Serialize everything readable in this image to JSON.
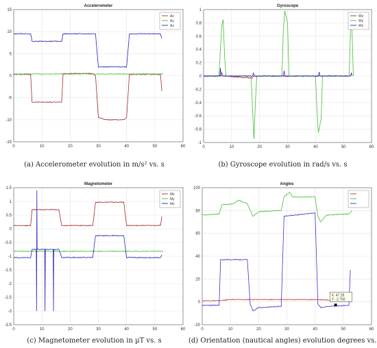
{
  "captions": {
    "a": "(a) Accelerometer evolution in m/s² vs. s",
    "b": "(b) Gyroscope evolution in rad/s vs. s",
    "c": "(c) Magnetometer evolution in µT vs. s",
    "d": "(d) Orientation (nautical angles) evolution degrees vs. s"
  },
  "chart_data": [
    {
      "type": "line",
      "title": "Accelerometer",
      "xlim": [
        0,
        60
      ],
      "ylim": [
        -15,
        15
      ],
      "xticks": [
        0,
        10,
        20,
        30,
        40,
        50,
        60
      ],
      "yticks": [
        -15,
        -10,
        -5,
        0,
        5,
        10,
        15
      ],
      "grid": true,
      "legend": "top-right",
      "series": [
        {
          "name": "Ax",
          "color": "#a0292a",
          "points": [
            [
              0,
              0.3
            ],
            [
              6,
              0.3
            ],
            [
              6.5,
              -6
            ],
            [
              8,
              -6
            ],
            [
              16,
              -6
            ],
            [
              17,
              -6
            ],
            [
              17.5,
              0.5
            ],
            [
              28,
              0.5
            ],
            [
              29,
              0
            ],
            [
              30,
              -9.5
            ],
            [
              33,
              -10
            ],
            [
              39,
              -10
            ],
            [
              40,
              -9.5
            ],
            [
              41,
              0.3
            ],
            [
              52,
              0.3
            ],
            [
              52.5,
              -3.5
            ]
          ]
        },
        {
          "name": "Ay",
          "color": "#44bb33",
          "points": [
            [
              0,
              0.4
            ],
            [
              52,
              0.4
            ],
            [
              53,
              0.4
            ]
          ]
        },
        {
          "name": "Az",
          "color": "#2222bb",
          "points": [
            [
              0,
              9.5
            ],
            [
              6,
              9.5
            ],
            [
              6.5,
              7.8
            ],
            [
              17,
              7.8
            ],
            [
              17.5,
              9.5
            ],
            [
              29,
              9.5
            ],
            [
              30,
              2
            ],
            [
              40,
              2
            ],
            [
              41,
              9.5
            ],
            [
              52,
              9.5
            ],
            [
              52.5,
              8.5
            ]
          ]
        }
      ]
    },
    {
      "type": "line",
      "title": "Gyroscope",
      "xlim": [
        0,
        60
      ],
      "ylim": [
        -1,
        1
      ],
      "xticks": [
        0,
        10,
        20,
        30,
        40,
        50,
        60
      ],
      "yticks": [
        -1,
        -0.8,
        -0.6,
        -0.4,
        -0.2,
        0,
        0.2,
        0.4,
        0.6,
        0.8,
        1
      ],
      "grid": true,
      "legend": "top-right",
      "series": [
        {
          "name": "Wx",
          "color": "#a0292a",
          "points": [
            [
              0,
              0
            ],
            [
              6,
              0
            ],
            [
              6.5,
              0.05
            ],
            [
              7,
              0
            ],
            [
              17.5,
              -0.03
            ],
            [
              18,
              0
            ],
            [
              52,
              0
            ]
          ]
        },
        {
          "name": "Wy",
          "color": "#44bb33",
          "points": [
            [
              0,
              0
            ],
            [
              5.5,
              0
            ],
            [
              6,
              0.4
            ],
            [
              6.5,
              0.75
            ],
            [
              7,
              0.85
            ],
            [
              7.5,
              0.3
            ],
            [
              8,
              0
            ],
            [
              17,
              0
            ],
            [
              17.5,
              -0.5
            ],
            [
              18,
              -0.95
            ],
            [
              18.5,
              -0.4
            ],
            [
              19,
              0
            ],
            [
              28,
              0
            ],
            [
              28.5,
              0.7
            ],
            [
              29,
              0.98
            ],
            [
              30,
              0.8
            ],
            [
              30.5,
              0
            ],
            [
              40,
              0
            ],
            [
              40.5,
              -0.5
            ],
            [
              41,
              -0.85
            ],
            [
              42,
              -0.65
            ],
            [
              42.5,
              0
            ],
            [
              52,
              0
            ],
            [
              52.5,
              0.7
            ],
            [
              53,
              0.75
            ],
            [
              53.5,
              0
            ]
          ]
        },
        {
          "name": "Wz",
          "color": "#2222bb",
          "points": [
            [
              0,
              0
            ],
            [
              5.8,
              0
            ],
            [
              6,
              0.12
            ],
            [
              6.3,
              0
            ],
            [
              17.5,
              0
            ],
            [
              17.8,
              0.05
            ],
            [
              18,
              0
            ],
            [
              28.5,
              0
            ],
            [
              28.8,
              0.08
            ],
            [
              29,
              0
            ],
            [
              41,
              0
            ],
            [
              41.3,
              0.06
            ],
            [
              41.6,
              0
            ],
            [
              52.5,
              0
            ],
            [
              52.8,
              0.05
            ],
            [
              53,
              0
            ]
          ]
        }
      ]
    },
    {
      "type": "line",
      "title": "Magnetometer",
      "xlim": [
        0,
        60
      ],
      "ylim": [
        -3.5,
        1.5
      ],
      "xticks": [
        0,
        10,
        20,
        30,
        40,
        50,
        60
      ],
      "yticks": [
        -3.5,
        -3,
        -2.5,
        -2,
        -1.5,
        -1,
        -0.5,
        0,
        0.5,
        1,
        1.5
      ],
      "grid": true,
      "legend": "top-right",
      "series": [
        {
          "name": "Mx",
          "color": "#a0292a",
          "points": [
            [
              0,
              0.12
            ],
            [
              6,
              0.12
            ],
            [
              6.5,
              0.7
            ],
            [
              16,
              0.7
            ],
            [
              17,
              0.12
            ],
            [
              28,
              0.12
            ],
            [
              29,
              0.97
            ],
            [
              39,
              0.97
            ],
            [
              40,
              0.12
            ],
            [
              52,
              0.12
            ],
            [
              52.5,
              0.45
            ]
          ]
        },
        {
          "name": "My",
          "color": "#44bb33",
          "points": [
            [
              0,
              -0.82
            ],
            [
              52,
              -0.82
            ],
            [
              53,
              -0.82
            ]
          ]
        },
        {
          "name": "Mz",
          "color": "#2222bb",
          "points": [
            [
              0,
              -1.05
            ],
            [
              6,
              -1.05
            ],
            [
              6.5,
              -0.75
            ],
            [
              8,
              -0.75
            ],
            [
              8.1,
              -3
            ],
            [
              8.2,
              1.4
            ],
            [
              8.3,
              -0.75
            ],
            [
              11,
              -0.75
            ],
            [
              11.1,
              -3
            ],
            [
              11.2,
              -0.75
            ],
            [
              14,
              -0.75
            ],
            [
              14.1,
              -3
            ],
            [
              14.2,
              -0.75
            ],
            [
              16,
              -0.75
            ],
            [
              17,
              -1.05
            ],
            [
              28,
              -1.05
            ],
            [
              29,
              -0.25
            ],
            [
              39,
              -0.25
            ],
            [
              40,
              -1.05
            ],
            [
              52,
              -1.05
            ],
            [
              52.5,
              -0.95
            ]
          ]
        }
      ]
    },
    {
      "type": "line",
      "title": "Angles",
      "xlim": [
        0,
        60
      ],
      "ylim": [
        -20,
        100
      ],
      "xticks": [
        0,
        10,
        20,
        30,
        40,
        50,
        60
      ],
      "yticks": [
        -20,
        0,
        20,
        40,
        60,
        80,
        100
      ],
      "grid": true,
      "legend": "top-right",
      "series": [
        {
          "color": "#c03030",
          "points": [
            [
              0,
              1
            ],
            [
              6,
              1
            ],
            [
              10,
              2
            ],
            [
              20,
              2
            ],
            [
              30,
              2
            ],
            [
              40,
              2
            ],
            [
              52,
              1
            ]
          ]
        },
        {
          "color": "#44bb33",
          "points": [
            [
              0,
              76
            ],
            [
              6,
              77
            ],
            [
              7,
              85
            ],
            [
              11,
              86
            ],
            [
              13,
              89
            ],
            [
              16,
              86
            ],
            [
              17,
              80
            ],
            [
              18,
              75
            ],
            [
              20,
              79
            ],
            [
              28,
              80
            ],
            [
              29,
              92
            ],
            [
              31,
              96
            ],
            [
              32,
              92
            ],
            [
              40,
              92
            ],
            [
              41,
              75
            ],
            [
              42,
              70
            ],
            [
              44,
              76
            ],
            [
              52,
              77
            ],
            [
              53,
              80
            ]
          ]
        },
        {
          "color": "#3333cc",
          "points": [
            [
              0,
              -3
            ],
            [
              6,
              -3
            ],
            [
              6.5,
              37
            ],
            [
              16,
              37
            ],
            [
              17,
              -2
            ],
            [
              18,
              -8
            ],
            [
              20,
              -5
            ],
            [
              28,
              -4
            ],
            [
              29,
              75
            ],
            [
              40,
              78
            ],
            [
              41,
              -2
            ],
            [
              42,
              -5
            ],
            [
              44,
              -4
            ],
            [
              52,
              -3
            ],
            [
              52.5,
              28
            ]
          ]
        }
      ],
      "annotation": {
        "x_text": "X: 47.28",
        "y_text": "Y: -2.756",
        "x": 47.28,
        "y": -2.756
      }
    }
  ]
}
